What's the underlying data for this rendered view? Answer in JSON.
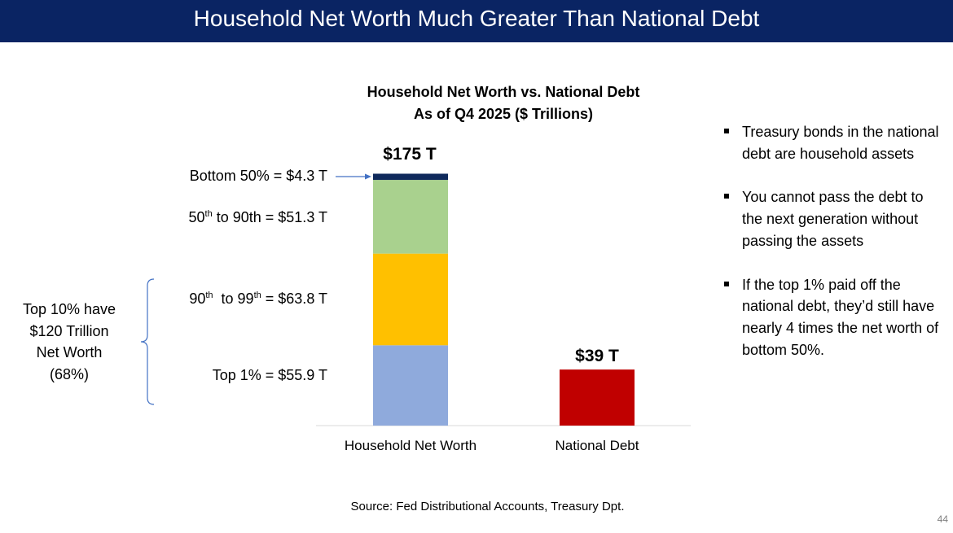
{
  "slide": {
    "title": "Household Net Worth Much Greater Than National Debt",
    "source": "Source:  Fed Distributional Accounts, Treasury Dpt.",
    "page_number": "44",
    "colors": {
      "title_bar": "#0a2463",
      "bottom_50": "#0f2a5c",
      "p50_90": "#a9d18e",
      "p90_99": "#ffc000",
      "top_1": "#8faadc",
      "national_debt": "#c00000",
      "arrow": "#4472c4",
      "brace": "#4472c4"
    }
  },
  "chart_data": {
    "type": "bar",
    "stacked": true,
    "title": "Household Net Worth vs. National Debt",
    "subtitle": "As of Q4 2025 ($ Trillions)",
    "categories": [
      "Household Net Worth",
      "National Debt"
    ],
    "ylim": [
      0,
      175
    ],
    "grid": false,
    "legend": "none",
    "series": [
      {
        "key": "top_1",
        "values": [
          55.9,
          0
        ]
      },
      {
        "key": "p90_99",
        "values": [
          63.8,
          0
        ]
      },
      {
        "key": "p50_90",
        "values": [
          51.3,
          0
        ]
      },
      {
        "key": "bottom_50",
        "values": [
          4.3,
          0
        ]
      },
      {
        "key": "national_debt",
        "values": [
          0,
          39
        ]
      }
    ],
    "segment_labels": {
      "bottom_50": "Bottom 50% = $4.3 T",
      "p50_90": {
        "a": "50",
        "a_sup": "th",
        "b": " to 90th = $51.3 T"
      },
      "p90_99": {
        "a": "90",
        "a_sup": "th",
        "b": "  to 99",
        "b_sup": "th",
        "c": " = $63.8 T"
      },
      "top_1": "Top 1% = $55.9 T"
    },
    "totals": {
      "household": "$175 T",
      "debt": "$39 T"
    },
    "annotations": {
      "brace_lines": [
        "Top 10% have",
        "$120 Trillion",
        "Net Worth",
        "(68%)"
      ]
    }
  },
  "bullets": [
    "Treasury bonds in the national debt are household assets",
    "You cannot pass the debt to the next generation without passing the assets",
    "If the top 1% paid off the national debt, they’d still have nearly 4 times the net worth of bottom 50%."
  ]
}
